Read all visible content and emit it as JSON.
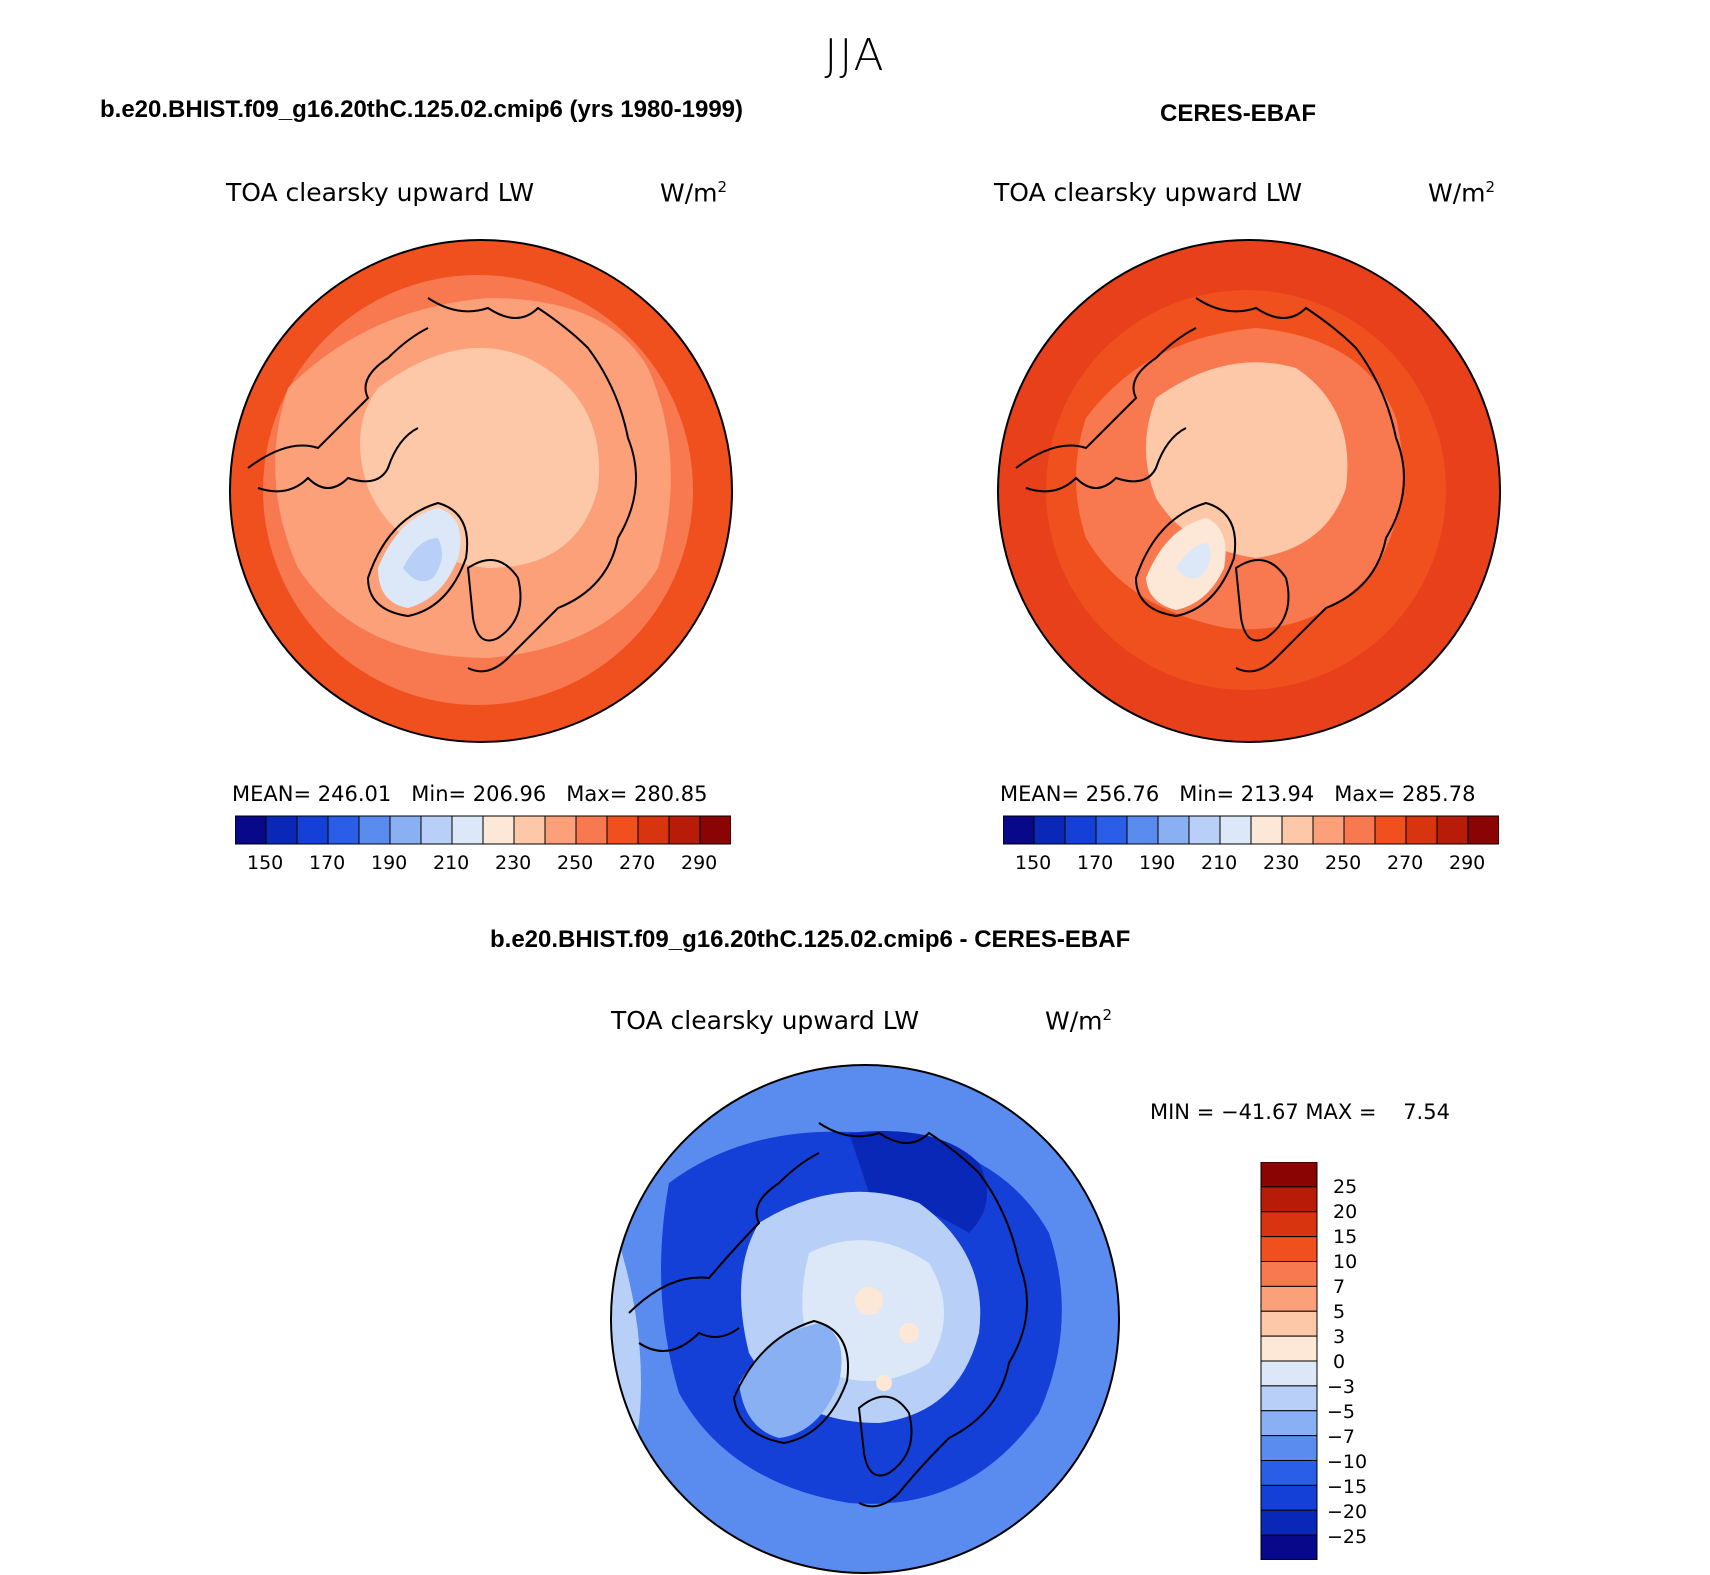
{
  "season": "JJA",
  "panels": [
    {
      "title": "b.e20.BHIST.f09_g16.20thC.125.02.cmip6 (yrs 1980-1999)",
      "variable": "TOA clearsky upward LW",
      "units_base": "W/m",
      "units_exp": "2",
      "stats_text": "MEAN= 246.01   Min= 206.96   Max= 280.85",
      "colorbar_ticks": [
        "150",
        "170",
        "190",
        "210",
        "230",
        "250",
        "270",
        "290"
      ]
    },
    {
      "title": "CERES-EBAF",
      "variable": "TOA clearsky upward LW",
      "units_base": "W/m",
      "units_exp": "2",
      "stats_text": "MEAN= 256.76   Min= 213.94   Max= 285.78",
      "colorbar_ticks": [
        "150",
        "170",
        "190",
        "210",
        "230",
        "250",
        "270",
        "290"
      ]
    }
  ],
  "diff_panel": {
    "title": "b.e20.BHIST.f09_g16.20thC.125.02.cmip6 - CERES-EBAF",
    "variable": "TOA clearsky upward LW",
    "units_base": "W/m",
    "units_exp": "2",
    "minmax_text": "MIN = −41.67 MAX =    7.54",
    "colorbar_labels": [
      "25",
      "20",
      "15",
      "10",
      "7",
      "5",
      "3",
      "0",
      "−3",
      "−5",
      "−7",
      "−10",
      "−15",
      "−20",
      "−25"
    ]
  },
  "colors": {
    "abs_scale": [
      "#08088a",
      "#0a28b8",
      "#1440d8",
      "#2a5ee8",
      "#5a8cf0",
      "#8ab0f4",
      "#b8d0f8",
      "#dce8f8",
      "#fde8d8",
      "#fcc8a8",
      "#fca07a",
      "#f87850",
      "#f0501e",
      "#d83410",
      "#b81c08",
      "#8a0404"
    ],
    "diff_scale_top_down": [
      "#8a0404",
      "#b81c08",
      "#d83410",
      "#f0501e",
      "#f87850",
      "#fca07a",
      "#fcc8a8",
      "#fde8d8",
      "#dce8f8",
      "#b8d0f8",
      "#8ab0f4",
      "#5a8cf0",
      "#2a5ee8",
      "#1440d8",
      "#0a28b8",
      "#08088a"
    ]
  }
}
